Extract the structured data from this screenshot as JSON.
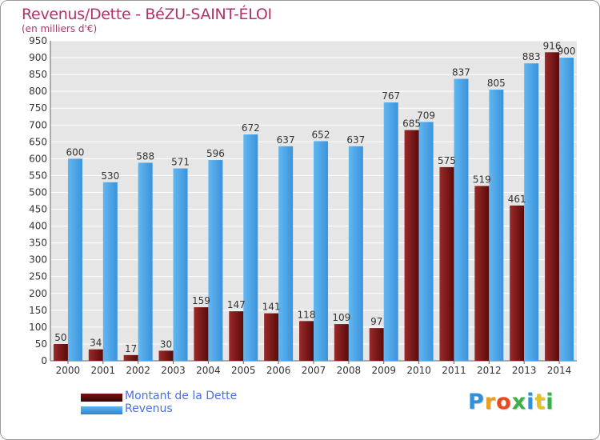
{
  "chart_data": {
    "type": "bar",
    "title": "Revenus/Dette - BéZU-SAINT-ÉLOI",
    "subtitle": "(en milliers d'€)",
    "categories": [
      "2000",
      "2001",
      "2002",
      "2003",
      "2004",
      "2005",
      "2006",
      "2007",
      "2008",
      "2009",
      "2010",
      "2011",
      "2012",
      "2013",
      "2014"
    ],
    "series": [
      {
        "name": "Montant de la Dette",
        "color": "#8b1a1a",
        "values": [
          50,
          34,
          17,
          30,
          159,
          147,
          141,
          118,
          109,
          97,
          685,
          575,
          519,
          461,
          916
        ]
      },
      {
        "name": "Revenus",
        "color": "#4aa3e8",
        "values": [
          600,
          530,
          588,
          571,
          596,
          672,
          637,
          652,
          637,
          767,
          709,
          837,
          805,
          883,
          900
        ]
      }
    ],
    "ylim": [
      0,
      950
    ],
    "yticks": [
      0,
      50,
      100,
      150,
      200,
      250,
      300,
      350,
      400,
      450,
      500,
      550,
      600,
      650,
      700,
      750,
      800,
      850,
      900,
      950
    ],
    "grid": true,
    "legend_position": "bottom-left"
  },
  "legend": {
    "items": [
      {
        "label": "Montant de la Dette",
        "color": "#6b0f0f"
      },
      {
        "label": "Revenus",
        "color": "#4aa3e8"
      }
    ]
  },
  "logo": {
    "letters": [
      "P",
      "r",
      "o",
      "x",
      "i",
      "t",
      "i"
    ],
    "colors": [
      "#2f8fd8",
      "#e8a020",
      "#e84a20",
      "#3bb04a",
      "#2f8fd8",
      "#e8c020",
      "#3bb04a"
    ]
  }
}
